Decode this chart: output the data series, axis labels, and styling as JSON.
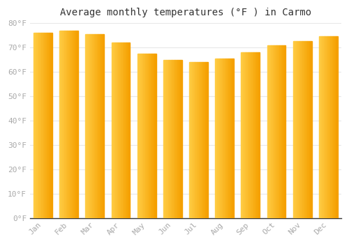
{
  "title": "Average monthly temperatures (°F ) in Carmo",
  "months": [
    "Jan",
    "Feb",
    "Mar",
    "Apr",
    "May",
    "Jun",
    "Jul",
    "Aug",
    "Sep",
    "Oct",
    "Nov",
    "Dec"
  ],
  "values": [
    76,
    77,
    75.5,
    72,
    67.5,
    65,
    64,
    65.5,
    68,
    71,
    72.5,
    74.5
  ],
  "bar_color_left": "#FFCC44",
  "bar_color_right": "#F5A000",
  "ylim": [
    0,
    80
  ],
  "yticks": [
    0,
    10,
    20,
    30,
    40,
    50,
    60,
    70,
    80
  ],
  "ytick_labels": [
    "0°F",
    "10°F",
    "20°F",
    "30°F",
    "40°F",
    "50°F",
    "60°F",
    "70°F",
    "80°F"
  ],
  "bg_color": "#ffffff",
  "plot_bg_color": "#ffffff",
  "grid_color": "#e8e8e8",
  "title_fontsize": 10,
  "tick_fontsize": 8,
  "tick_color": "#aaaaaa",
  "bar_gap": 0.15,
  "n_gradient_strips": 20
}
